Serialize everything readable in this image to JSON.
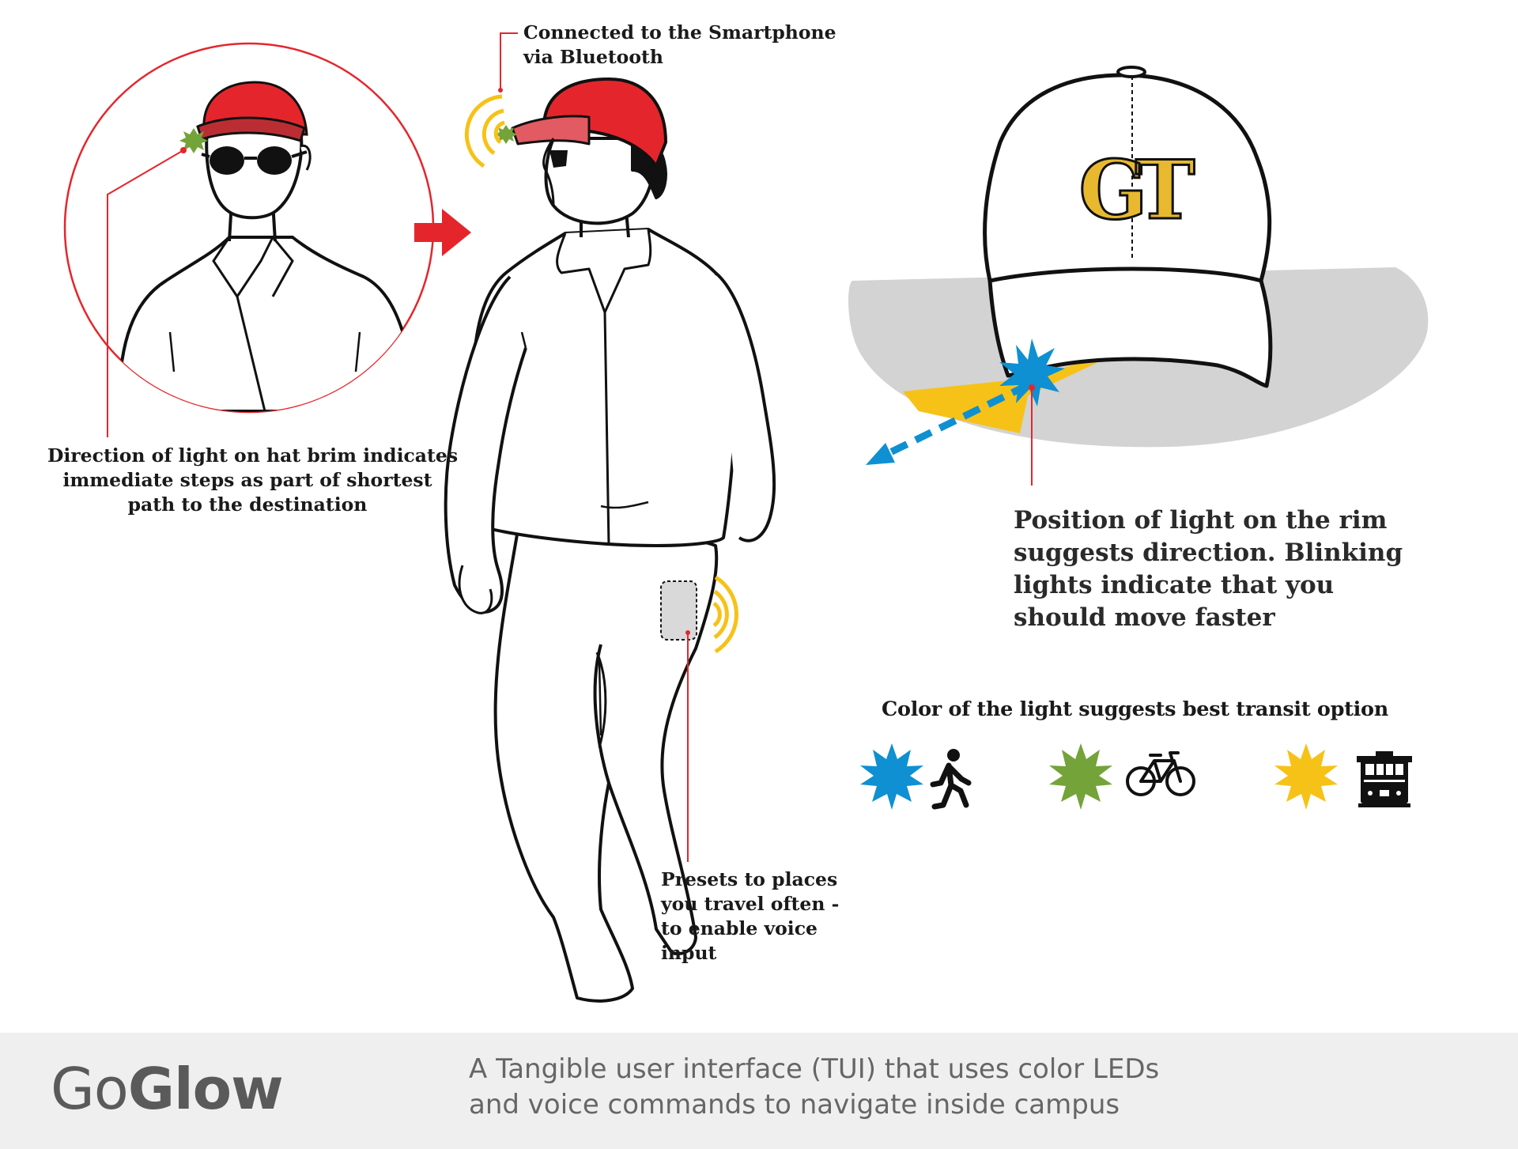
{
  "labels": {
    "bluetooth": [
      "Connected to the Smartphone",
      "via Bluetooth"
    ],
    "hat_direction": [
      "Direction of light on hat brim indicates",
      "immediate steps as part of shortest",
      "path to the destination"
    ],
    "rim_position": [
      "Position of light on the rim",
      "suggests direction. Blinking",
      "lights indicate that you",
      "should move faster"
    ],
    "presets": [
      "Presets to places",
      "you travel often -",
      "to enable voice",
      "input"
    ],
    "color_legend_title": "Color of the light suggests best transit option"
  },
  "legend": [
    {
      "color": "#0e90d2",
      "icon": "walking-person-icon"
    },
    {
      "color": "#74a33a",
      "icon": "bicycle-icon"
    },
    {
      "color": "#f7c218",
      "icon": "trolley-icon"
    }
  ],
  "cap_logo": "GT",
  "footer": {
    "brand_prefix": "Go",
    "brand_bold": "Glow",
    "tagline": [
      "A Tangible user interface (TUI) that uses color LEDs",
      "and voice commands to navigate inside campus"
    ]
  },
  "colors": {
    "accent_red": "#e4262c",
    "signal_yellow": "#f7c218",
    "led_blue": "#0e90d2",
    "led_green": "#74a33a",
    "footer_bg": "#efefef"
  }
}
